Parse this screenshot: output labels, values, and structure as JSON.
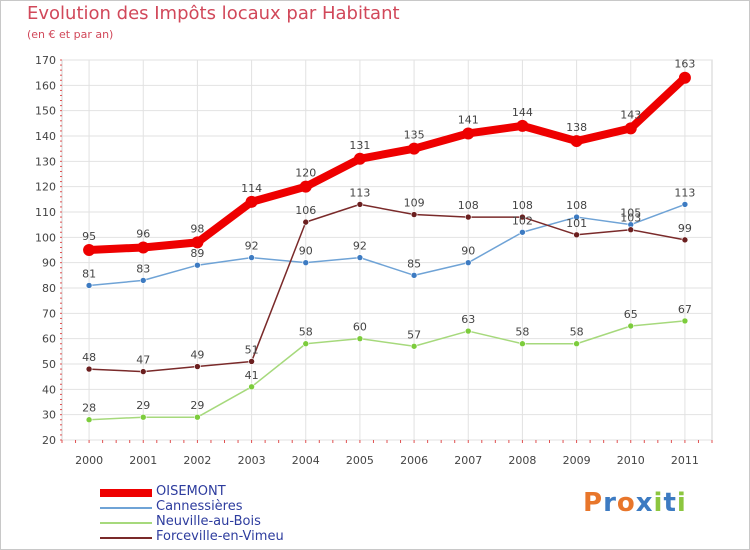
{
  "title": "Evolution des Impôts locaux par Habitant",
  "subtitle": "(en € et par an)",
  "logo": {
    "letters": [
      "P",
      "r",
      "o",
      "x",
      "i",
      "t",
      "i"
    ],
    "colors": [
      "#e8762b",
      "#3d7bc2",
      "#e8762b",
      "#3d7bc2",
      "#8cc63f",
      "#3d7bc2",
      "#8cc63f"
    ]
  },
  "chart_data": {
    "type": "line",
    "title": "Evolution des Impôts locaux par Habitant",
    "subtitle": "(en € et par an)",
    "xlabel": "",
    "ylabel": "",
    "ylim": [
      20,
      170
    ],
    "yticks": [
      20,
      30,
      40,
      50,
      60,
      70,
      80,
      90,
      100,
      110,
      120,
      130,
      140,
      150,
      160,
      170
    ],
    "categories": [
      "2000",
      "2001",
      "2002",
      "2003",
      "2004",
      "2005",
      "2006",
      "2007",
      "2008",
      "2009",
      "2010",
      "2011"
    ],
    "grid": true,
    "legend_position": "bottom-left",
    "series": [
      {
        "name": "OISEMONT",
        "color": "#ee0000",
        "emphasis": true,
        "values": [
          95,
          96,
          98,
          114,
          120,
          131,
          135,
          141,
          144,
          138,
          143,
          163
        ]
      },
      {
        "name": "Cannessières",
        "color": "#6fa3d6",
        "point_color": "#3d7bc2",
        "emphasis": false,
        "values": [
          81,
          83,
          89,
          92,
          90,
          92,
          85,
          90,
          102,
          108,
          105,
          113
        ]
      },
      {
        "name": "Neuville-au-Bois",
        "color": "#a6d97c",
        "point_color": "#7ccc3c",
        "emphasis": false,
        "values": [
          28,
          29,
          29,
          41,
          58,
          60,
          57,
          63,
          58,
          58,
          65,
          67
        ]
      },
      {
        "name": "Forceville-en-Vimeu",
        "color": "#7a2a2a",
        "point_color": "#6b1f1f",
        "emphasis": false,
        "values": [
          48,
          47,
          49,
          51,
          106,
          113,
          109,
          108,
          108,
          101,
          103,
          99
        ]
      }
    ]
  }
}
